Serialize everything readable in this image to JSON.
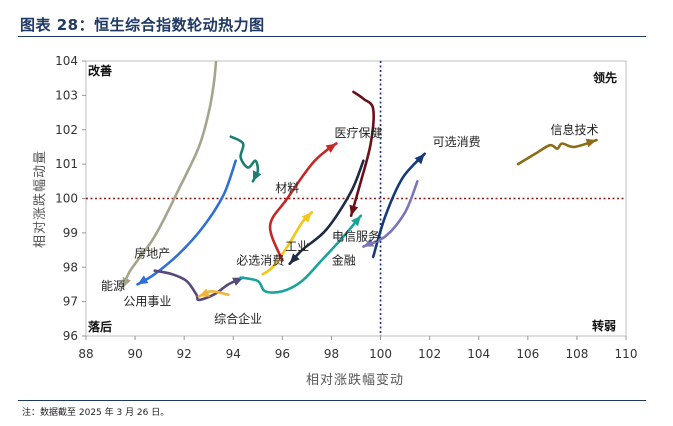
{
  "header": {
    "title": "图表 28：恒生综合指数轮动热力图"
  },
  "footer": {
    "note": "注：数据截至 2025 年 3 月 26 日。"
  },
  "chart_data": {
    "type": "line",
    "xlabel": "相对涨跌幅变动",
    "ylabel": "相对涨跌幅动量",
    "xlim": [
      88,
      110
    ],
    "ylim": [
      96,
      104
    ],
    "xticks": [
      "88",
      "90",
      "92",
      "94",
      "96",
      "98",
      "100",
      "102",
      "104",
      "106",
      "108",
      "110"
    ],
    "yticks": [
      "96",
      "97",
      "98",
      "99",
      "100",
      "101",
      "102",
      "103",
      "104"
    ],
    "reference_lines": {
      "x": 100,
      "y": 100
    },
    "quadrants": {
      "top_left": "改善",
      "top_right": "领先",
      "bottom_left": "落后",
      "bottom_right": "转弱"
    },
    "series": [
      {
        "name": "房地产",
        "color": "#a5a58d",
        "points": [
          [
            93.3,
            104.0
          ],
          [
            93.2,
            103.3
          ],
          [
            93.0,
            102.5
          ],
          [
            92.6,
            101.5
          ],
          [
            91.8,
            100.3
          ],
          [
            90.8,
            98.9
          ],
          [
            89.8,
            97.9
          ],
          [
            89.5,
            97.4
          ]
        ]
      },
      {
        "name": "材料",
        "color": "#1e7f6e",
        "points": [
          [
            93.9,
            101.8
          ],
          [
            94.4,
            101.6
          ],
          [
            94.3,
            101.2
          ],
          [
            94.6,
            100.9
          ],
          [
            94.9,
            101.1
          ],
          [
            95.0,
            100.8
          ],
          [
            94.8,
            100.5
          ]
        ]
      },
      {
        "name": "能源",
        "color": "#2f6fd6",
        "points": [
          [
            94.1,
            101.1
          ],
          [
            93.6,
            100.1
          ],
          [
            92.8,
            99.2
          ],
          [
            91.8,
            98.4
          ],
          [
            90.8,
            97.8
          ],
          [
            90.1,
            97.5
          ]
        ]
      },
      {
        "name": "公用事业",
        "color": "#5a4a7a",
        "points": [
          [
            90.8,
            97.9
          ],
          [
            91.5,
            97.8
          ],
          [
            92.1,
            97.6
          ],
          [
            92.5,
            97.2
          ],
          [
            92.6,
            97.05
          ],
          [
            93.2,
            97.2
          ],
          [
            93.8,
            97.5
          ],
          [
            94.4,
            97.7
          ]
        ]
      },
      {
        "name": "综合企业",
        "color": "#f2b53a",
        "points": [
          [
            93.8,
            97.2
          ],
          [
            93.1,
            97.3
          ],
          [
            92.6,
            97.15
          ]
        ]
      },
      {
        "name": "必选消费",
        "color": "#f5c518",
        "points": [
          [
            95.2,
            97.8
          ],
          [
            95.6,
            98.0
          ],
          [
            96.2,
            98.6
          ],
          [
            96.8,
            99.3
          ],
          [
            97.2,
            99.6
          ]
        ]
      },
      {
        "name": "工业",
        "color": "#1aa39a",
        "points": [
          [
            94.3,
            97.7
          ],
          [
            95.0,
            97.6
          ],
          [
            95.3,
            97.3
          ],
          [
            96.0,
            97.3
          ],
          [
            96.8,
            97.6
          ],
          [
            97.6,
            98.2
          ],
          [
            98.5,
            98.9
          ],
          [
            99.2,
            99.5
          ]
        ]
      },
      {
        "name": "医疗保健",
        "color": "#c62828",
        "points": [
          [
            96.0,
            98.2
          ],
          [
            95.5,
            99.2
          ],
          [
            96.2,
            100.0
          ],
          [
            97.2,
            101.0
          ],
          [
            97.8,
            101.4
          ],
          [
            98.2,
            101.6
          ]
        ]
      },
      {
        "name": "电信服务",
        "color": "#1f2a44",
        "points": [
          [
            99.3,
            101.1
          ],
          [
            98.8,
            100.2
          ],
          [
            97.8,
            99.1
          ],
          [
            96.8,
            98.5
          ],
          [
            96.3,
            98.1
          ]
        ]
      },
      {
        "name": "金融",
        "color": "#6a1018",
        "points": [
          [
            98.9,
            103.1
          ],
          [
            99.3,
            102.9
          ],
          [
            99.7,
            102.6
          ],
          [
            99.6,
            101.6
          ],
          [
            99.2,
            100.5
          ],
          [
            98.8,
            99.5
          ]
        ]
      },
      {
        "name": "可选消费",
        "color": "#163a78",
        "points": [
          [
            99.7,
            98.3
          ],
          [
            100.2,
            99.5
          ],
          [
            100.9,
            100.6
          ],
          [
            101.8,
            101.3
          ]
        ]
      },
      {
        "name": "信息技术",
        "color": "#8a6d14",
        "points": [
          [
            105.6,
            101.0
          ],
          [
            106.3,
            101.3
          ],
          [
            106.9,
            101.55
          ],
          [
            107.2,
            101.45
          ],
          [
            107.4,
            101.6
          ],
          [
            107.9,
            101.5
          ],
          [
            108.8,
            101.7
          ]
        ]
      },
      {
        "name": "",
        "color": "#7a76b8",
        "points": [
          [
            101.5,
            100.5
          ],
          [
            101.0,
            99.6
          ],
          [
            100.2,
            98.9
          ],
          [
            99.3,
            98.6
          ]
        ]
      }
    ],
    "labels": [
      {
        "text": "房地产",
        "x": 90.7,
        "y": 98.4
      },
      {
        "text": "能源",
        "x": 89.1,
        "y": 97.45
      },
      {
        "text": "公用事业",
        "x": 90.5,
        "y": 97.0
      },
      {
        "text": "综合企业",
        "x": 94.2,
        "y": 96.5
      },
      {
        "text": "必选消费",
        "x": 95.1,
        "y": 98.2
      },
      {
        "text": "工业",
        "x": 96.6,
        "y": 98.6
      },
      {
        "text": "材料",
        "x": 96.2,
        "y": 100.3
      },
      {
        "text": "医疗保健",
        "x": 99.1,
        "y": 101.9
      },
      {
        "text": "电信服务",
        "x": 99.0,
        "y": 98.9
      },
      {
        "text": "金融",
        "x": 98.5,
        "y": 98.2
      },
      {
        "text": "可选消费",
        "x": 103.1,
        "y": 101.65
      },
      {
        "text": "信息技术",
        "x": 107.9,
        "y": 102.0
      }
    ]
  }
}
